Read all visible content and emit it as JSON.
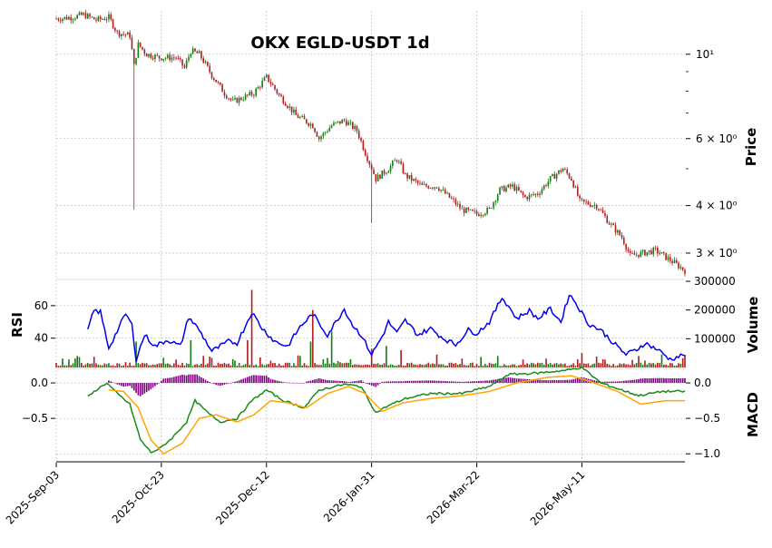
{
  "chart_data": {
    "type": "candlestick",
    "title": "OKX EGLD-USDT 1d",
    "x_tick_labels": [
      "2025-Sep-03",
      "2025-Oct-23",
      "2025-Dec-12",
      "2026-Jan-31",
      "2026-Mar-22",
      "2026-May-11"
    ],
    "x_range": [
      "2025-Sep-03",
      "2026-Jun-29"
    ],
    "grid": true,
    "colors": {
      "up": "#1a7a1a",
      "down": "#b01e1e",
      "rsi": "#0000ee",
      "macd": "#1a8a1a",
      "signal": "#ffa500",
      "histogram": "#800080",
      "grid": "#b0b0b0"
    },
    "price_panel": {
      "ylabel": "Price",
      "scale": "log",
      "ylim": [
        2.6,
        13.0
      ],
      "tick_labels": [
        {
          "value": 10,
          "label": "10¹"
        },
        {
          "value": 6,
          "label": "6 × 10⁰"
        },
        {
          "value": 4,
          "label": "4 × 10⁰"
        },
        {
          "value": 3,
          "label": "3 × 10⁰"
        }
      ],
      "close_anchors": [
        [
          "2025-Sep-03",
          12.4
        ],
        [
          "2025-Sep-10",
          12.5
        ],
        [
          "2025-Sep-16",
          12.7
        ],
        [
          "2025-Sep-22",
          12.3
        ],
        [
          "2025-Sep-28",
          12.5
        ],
        [
          "2025-Oct-02",
          11.4
        ],
        [
          "2025-Oct-08",
          11.2
        ],
        [
          "2025-Oct-10",
          9.3
        ],
        [
          "2025-Oct-12",
          10.6
        ],
        [
          "2025-Oct-16",
          10.0
        ],
        [
          "2025-Oct-22",
          9.8
        ],
        [
          "2025-Oct-30",
          9.8
        ],
        [
          "2025-Nov-03",
          9.2
        ],
        [
          "2025-Nov-06",
          10.2
        ],
        [
          "2025-Nov-10",
          10.0
        ],
        [
          "2025-Nov-16",
          8.8
        ],
        [
          "2025-Nov-22",
          7.9
        ],
        [
          "2025-Nov-26",
          7.5
        ],
        [
          "2025-Dec-06",
          7.9
        ],
        [
          "2025-Dec-12",
          8.7
        ],
        [
          "2025-Dec-18",
          7.8
        ],
        [
          "2025-Dec-26",
          6.9
        ],
        [
          "2026-Jan-03",
          6.5
        ],
        [
          "2026-Jan-06",
          6.0
        ],
        [
          "2026-Jan-12",
          6.5
        ],
        [
          "2026-Jan-18",
          6.7
        ],
        [
          "2026-Jan-24",
          6.3
        ],
        [
          "2026-Jan-28",
          5.5
        ],
        [
          "2026-Feb-02",
          4.7
        ],
        [
          "2026-Feb-08",
          5.0
        ],
        [
          "2026-Feb-12",
          5.3
        ],
        [
          "2026-Feb-16",
          4.8
        ],
        [
          "2026-Feb-24",
          4.5
        ],
        [
          "2026-Mar-03",
          4.5
        ],
        [
          "2026-Mar-09",
          4.2
        ],
        [
          "2026-Mar-15",
          3.9
        ],
        [
          "2026-Mar-22",
          3.8
        ],
        [
          "2026-Mar-28",
          3.9
        ],
        [
          "2026-Apr-02",
          4.4
        ],
        [
          "2026-Apr-08",
          4.5
        ],
        [
          "2026-Apr-14",
          4.2
        ],
        [
          "2026-Apr-20",
          4.3
        ],
        [
          "2026-Apr-26",
          4.7
        ],
        [
          "2026-May-02",
          5.0
        ],
        [
          "2026-May-06",
          4.7
        ],
        [
          "2026-May-10",
          4.1
        ],
        [
          "2026-May-18",
          4.0
        ],
        [
          "2026-May-24",
          3.6
        ],
        [
          "2026-May-30",
          3.3
        ],
        [
          "2026-Jun-03",
          2.95
        ],
        [
          "2026-Jun-09",
          3.0
        ],
        [
          "2026-Jun-15",
          3.05
        ],
        [
          "2026-Jun-21",
          2.9
        ],
        [
          "2026-Jun-29",
          2.7
        ]
      ],
      "spikes": [
        {
          "date": "2025-Oct-10",
          "low": 3.9
        },
        {
          "date": "2026-Jan-31",
          "low": 3.6
        }
      ]
    },
    "volume_panel": {
      "ylabel": "Volume",
      "ylim": [
        0,
        300000
      ],
      "tick_labels": [
        "100000",
        "200000",
        "300000"
      ],
      "tick_values": [
        100000,
        200000,
        300000
      ],
      "peaks": [
        {
          "date": "2025-Sep-13",
          "value": 40000
        },
        {
          "date": "2025-Oct-11",
          "value": 90000
        },
        {
          "date": "2025-Nov-06",
          "value": 95000
        },
        {
          "date": "2025-Dec-05",
          "value": 270000
        },
        {
          "date": "2025-Dec-03",
          "value": 95000
        },
        {
          "date": "2026-Jan-03",
          "value": 200000
        },
        {
          "date": "2026-Jan-12",
          "value": 125000
        },
        {
          "date": "2026-Jan-02",
          "value": 90000
        },
        {
          "date": "2026-Jan-31",
          "value": 65000
        },
        {
          "date": "2026-Feb-07",
          "value": 75000
        },
        {
          "date": "2026-Feb-14",
          "value": 60000
        },
        {
          "date": "2026-Mar-03",
          "value": 45000
        },
        {
          "date": "2026-Apr-01",
          "value": 40000
        },
        {
          "date": "2026-May-11",
          "value": 50000
        },
        {
          "date": "2026-Jun-07",
          "value": 40000
        },
        {
          "date": "2026-Jun-18",
          "value": 45000
        }
      ]
    },
    "rsi_panel": {
      "ylabel": "RSI",
      "tick_labels": [
        "40",
        "60"
      ],
      "tick_values": [
        40,
        60
      ],
      "ylim": [
        22,
        75
      ],
      "anchors": [
        [
          "2025-Sep-18",
          45
        ],
        [
          "2025-Sep-21",
          57
        ],
        [
          "2025-Sep-24",
          56
        ],
        [
          "2025-Sep-28",
          34
        ],
        [
          "2025-Oct-03",
          47
        ],
        [
          "2025-Oct-06",
          55
        ],
        [
          "2025-Oct-09",
          48
        ],
        [
          "2025-Oct-11",
          27
        ],
        [
          "2025-Oct-15",
          42
        ],
        [
          "2025-Oct-20",
          35
        ],
        [
          "2025-Oct-26",
          39
        ],
        [
          "2025-Nov-01",
          35
        ],
        [
          "2025-Nov-05",
          53
        ],
        [
          "2025-Nov-10",
          45
        ],
        [
          "2025-Nov-16",
          32
        ],
        [
          "2025-Nov-24",
          38
        ],
        [
          "2025-Nov-28",
          37
        ],
        [
          "2025-Dec-01",
          45
        ],
        [
          "2025-Dec-05",
          56
        ],
        [
          "2025-Dec-10",
          46
        ],
        [
          "2025-Dec-16",
          38
        ],
        [
          "2025-Dec-22",
          35
        ],
        [
          "2025-Dec-28",
          47
        ],
        [
          "2026-Jan-03",
          55
        ],
        [
          "2026-Jan-06",
          49
        ],
        [
          "2026-Jan-10",
          42
        ],
        [
          "2026-Jan-14",
          50
        ],
        [
          "2026-Jan-18",
          58
        ],
        [
          "2026-Jan-22",
          48
        ],
        [
          "2026-Jan-26",
          42
        ],
        [
          "2026-Jan-31",
          30
        ],
        [
          "2026-Feb-05",
          41
        ],
        [
          "2026-Feb-08",
          50
        ],
        [
          "2026-Feb-12",
          43
        ],
        [
          "2026-Feb-16",
          51
        ],
        [
          "2026-Feb-22",
          42
        ],
        [
          "2026-Feb-28",
          46
        ],
        [
          "2026-Mar-06",
          40
        ],
        [
          "2026-Mar-12",
          36
        ],
        [
          "2026-Mar-18",
          45
        ],
        [
          "2026-Mar-22",
          43
        ],
        [
          "2026-Mar-28",
          50
        ],
        [
          "2026-Apr-03",
          65
        ],
        [
          "2026-Apr-06",
          60
        ],
        [
          "2026-Apr-10",
          52
        ],
        [
          "2026-Apr-16",
          57
        ],
        [
          "2026-Apr-20",
          52
        ],
        [
          "2026-Apr-26",
          58
        ],
        [
          "2026-May-01",
          50
        ],
        [
          "2026-May-05",
          67
        ],
        [
          "2026-May-08",
          62
        ],
        [
          "2026-May-14",
          49
        ],
        [
          "2026-May-20",
          45
        ],
        [
          "2026-May-26",
          37
        ],
        [
          "2026-Jun-01",
          30
        ],
        [
          "2026-Jun-06",
          33
        ],
        [
          "2026-Jun-10",
          37
        ],
        [
          "2026-Jun-16",
          33
        ],
        [
          "2026-Jun-22",
          27
        ],
        [
          "2026-Jun-29",
          30
        ]
      ]
    },
    "macd_panel": {
      "ylabel": "MACD",
      "left_tick_labels": [
        "−0.5",
        "0.0"
      ],
      "left_tick_values": [
        -0.5,
        0.0
      ],
      "right_tick_labels": [
        "−1.0",
        "−0.5",
        "0.0"
      ],
      "right_tick_values": [
        -1.0,
        -0.5,
        0.0
      ],
      "ylim": [
        -1.1,
        0.18
      ],
      "macd_anchors": [
        [
          "2025-Sep-18",
          -0.2
        ],
        [
          "2025-Sep-22",
          -0.1
        ],
        [
          "2025-Sep-27",
          0.0
        ],
        [
          "2025-Oct-02",
          -0.15
        ],
        [
          "2025-Oct-08",
          -0.3
        ],
        [
          "2025-Oct-13",
          -0.8
        ],
        [
          "2025-Oct-18",
          -0.98
        ],
        [
          "2025-Oct-22",
          -0.93
        ],
        [
          "2025-Oct-28",
          -0.78
        ],
        [
          "2025-Nov-04",
          -0.55
        ],
        [
          "2025-Nov-08",
          -0.25
        ],
        [
          "2025-Nov-14",
          -0.42
        ],
        [
          "2025-Nov-20",
          -0.55
        ],
        [
          "2025-Nov-28",
          -0.5
        ],
        [
          "2025-Dec-05",
          -0.25
        ],
        [
          "2025-Dec-12",
          -0.1
        ],
        [
          "2025-Dec-20",
          -0.25
        ],
        [
          "2025-Dec-30",
          -0.35
        ],
        [
          "2026-Jan-06",
          -0.1
        ],
        [
          "2026-Jan-18",
          -0.02
        ],
        [
          "2026-Jan-26",
          -0.05
        ],
        [
          "2026-Feb-02",
          -0.42
        ],
        [
          "2026-Feb-08",
          -0.32
        ],
        [
          "2026-Feb-16",
          -0.22
        ],
        [
          "2026-Feb-28",
          -0.15
        ],
        [
          "2026-Mar-15",
          -0.15
        ],
        [
          "2026-Mar-28",
          -0.05
        ],
        [
          "2026-Apr-06",
          0.12
        ],
        [
          "2026-Apr-20",
          0.14
        ],
        [
          "2026-May-04",
          0.18
        ],
        [
          "2026-May-11",
          0.22
        ],
        [
          "2026-May-20",
          0.0
        ],
        [
          "2026-May-30",
          -0.1
        ],
        [
          "2026-Jun-07",
          -0.18
        ],
        [
          "2026-Jun-18",
          -0.12
        ],
        [
          "2026-Jun-29",
          -0.12
        ]
      ],
      "signal_anchors": [
        [
          "2025-Sep-28",
          -0.1
        ],
        [
          "2025-Oct-05",
          -0.12
        ],
        [
          "2025-Oct-12",
          -0.35
        ],
        [
          "2025-Oct-18",
          -0.8
        ],
        [
          "2025-Oct-24",
          -1.0
        ],
        [
          "2025-Nov-02",
          -0.85
        ],
        [
          "2025-Nov-10",
          -0.5
        ],
        [
          "2025-Nov-18",
          -0.45
        ],
        [
          "2025-Nov-28",
          -0.55
        ],
        [
          "2025-Dec-06",
          -0.45
        ],
        [
          "2025-Dec-14",
          -0.25
        ],
        [
          "2025-Dec-22",
          -0.28
        ],
        [
          "2025-Dec-31",
          -0.35
        ],
        [
          "2026-Jan-10",
          -0.15
        ],
        [
          "2026-Jan-20",
          -0.05
        ],
        [
          "2026-Jan-28",
          -0.15
        ],
        [
          "2026-Feb-05",
          -0.4
        ],
        [
          "2026-Feb-15",
          -0.28
        ],
        [
          "2026-Feb-28",
          -0.22
        ],
        [
          "2026-Mar-15",
          -0.18
        ],
        [
          "2026-Mar-28",
          -0.12
        ],
        [
          "2026-Apr-10",
          0.0
        ],
        [
          "2026-Apr-25",
          0.08
        ],
        [
          "2026-May-06",
          0.1
        ],
        [
          "2026-May-15",
          0.02
        ],
        [
          "2026-May-28",
          -0.12
        ],
        [
          "2026-Jun-08",
          -0.3
        ],
        [
          "2026-Jun-20",
          -0.25
        ],
        [
          "2026-Jun-29",
          -0.25
        ]
      ]
    }
  }
}
